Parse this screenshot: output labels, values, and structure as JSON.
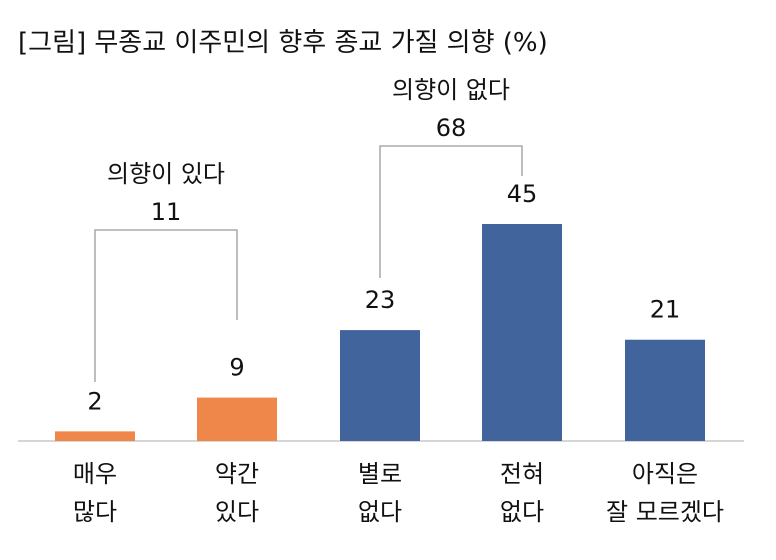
{
  "chart_data": {
    "type": "bar",
    "title": "[그림] 무종교 이주민의 향후 종교 가질 의향 (%)",
    "categories": [
      {
        "line1": "매우",
        "line2": "많다"
      },
      {
        "line1": "약간",
        "line2": "있다"
      },
      {
        "line1": "별로",
        "line2": "없다"
      },
      {
        "line1": "전혀",
        "line2": "없다"
      },
      {
        "line1": "아직은",
        "line2": "잘 모르겠다"
      }
    ],
    "values": [
      2,
      9,
      23,
      45,
      21
    ],
    "bar_colors": [
      "#F0874A",
      "#F0874A",
      "#41649D",
      "#41649D",
      "#41649D"
    ],
    "ylim": [
      0,
      45
    ],
    "groups": [
      {
        "label": "의향이 있다",
        "value": "11",
        "from": 0,
        "to": 1
      },
      {
        "label": "의향이 없다",
        "value": "68",
        "from": 2,
        "to": 3
      }
    ]
  }
}
